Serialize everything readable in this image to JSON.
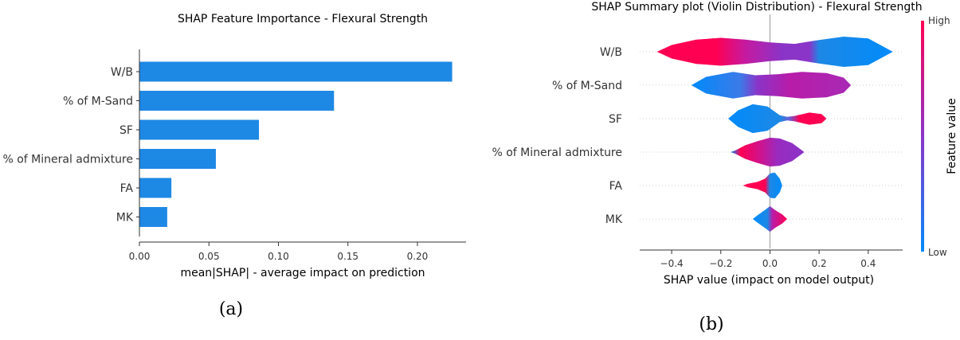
{
  "chart_data": [
    {
      "type": "bar",
      "orientation": "horizontal",
      "title": "SHAP Feature Importance - Flexural Strength",
      "xlabel": "mean|SHAP| - average impact on prediction",
      "ylabel": "",
      "xlim": [
        0,
        0.235
      ],
      "xticks": [
        "0.00",
        "0.05",
        "0.10",
        "0.15",
        "0.20"
      ],
      "categories": [
        "W/B",
        "% of M-Sand",
        "SF",
        "% of Mineral admixture",
        "FA",
        "MK"
      ],
      "values": [
        0.225,
        0.14,
        0.086,
        0.055,
        0.023,
        0.02
      ],
      "bar_color": "#1e88e5",
      "caption": "(a)"
    },
    {
      "type": "violin",
      "title": "SHAP Summary plot (Violin Distribution) - Flexural Strength",
      "xlabel": "SHAP value (impact on model output)",
      "ylabel": "",
      "xlim": [
        -0.53,
        0.54
      ],
      "xticks": [
        "−0.4",
        "−0.2",
        "0.0",
        "0.2",
        "0.4"
      ],
      "categories": [
        "W/B",
        "% of M-Sand",
        "SF",
        "% of Mineral admixture",
        "FA",
        "MK"
      ],
      "violins": [
        {
          "feature": "W/B",
          "min": -0.46,
          "max": 0.5,
          "profile": [
            [
              -0.46,
              0.0
            ],
            [
              -0.4,
              0.45
            ],
            [
              -0.3,
              0.8
            ],
            [
              -0.2,
              0.92
            ],
            [
              -0.1,
              0.8
            ],
            [
              0.0,
              0.62
            ],
            [
              0.1,
              0.52
            ],
            [
              0.2,
              0.78
            ],
            [
              0.3,
              1.0
            ],
            [
              0.4,
              0.88
            ],
            [
              0.5,
              0.0
            ]
          ],
          "color_stops": [
            [
              -0.46,
              "#ff0052"
            ],
            [
              -0.22,
              "#ff0052"
            ],
            [
              -0.1,
              "#c51aa0"
            ],
            [
              0.05,
              "#8a34c8"
            ],
            [
              0.16,
              "#8a34c8"
            ],
            [
              0.2,
              "#1e88e5"
            ],
            [
              0.5,
              "#008bfb"
            ]
          ]
        },
        {
          "feature": "% of M-Sand",
          "min": -0.32,
          "max": 0.33,
          "profile": [
            [
              -0.32,
              0.0
            ],
            [
              -0.26,
              0.55
            ],
            [
              -0.15,
              0.88
            ],
            [
              -0.06,
              0.66
            ],
            [
              0.03,
              0.72
            ],
            [
              0.13,
              0.88
            ],
            [
              0.23,
              0.8
            ],
            [
              0.3,
              0.5
            ],
            [
              0.33,
              0.0
            ]
          ],
          "color_stops": [
            [
              -0.32,
              "#008bfb"
            ],
            [
              -0.12,
              "#3d7ae8"
            ],
            [
              -0.05,
              "#8a34c8"
            ],
            [
              0.08,
              "#b81ca8"
            ],
            [
              0.33,
              "#a82ab5"
            ]
          ]
        },
        {
          "feature": "SF",
          "min": -0.17,
          "max": 0.23,
          "profile": [
            [
              -0.17,
              0.0
            ],
            [
              -0.13,
              0.55
            ],
            [
              -0.07,
              0.95
            ],
            [
              -0.01,
              0.8
            ],
            [
              0.04,
              0.22
            ],
            [
              0.07,
              0.12
            ],
            [
              0.1,
              0.18
            ],
            [
              0.16,
              0.4
            ],
            [
              0.21,
              0.3
            ],
            [
              0.23,
              0.0
            ]
          ],
          "color_stops": [
            [
              -0.17,
              "#008bfb"
            ],
            [
              0.04,
              "#1e88e5"
            ],
            [
              0.08,
              "#6a5fd6"
            ],
            [
              0.12,
              "#ff0052"
            ],
            [
              0.23,
              "#ff0052"
            ]
          ]
        },
        {
          "feature": "% of Mineral admixture",
          "min": -0.16,
          "max": 0.14,
          "profile": [
            [
              -0.16,
              0.0
            ],
            [
              -0.14,
              0.12
            ],
            [
              -0.1,
              0.45
            ],
            [
              -0.05,
              0.72
            ],
            [
              0.0,
              0.95
            ],
            [
              0.04,
              0.9
            ],
            [
              0.09,
              0.6
            ],
            [
              0.14,
              0.0
            ]
          ],
          "color_stops": [
            [
              -0.16,
              "#008bfb"
            ],
            [
              -0.12,
              "#ff0052"
            ],
            [
              -0.04,
              "#d0128c"
            ],
            [
              0.03,
              "#9a2bbf"
            ],
            [
              0.14,
              "#8a34c8"
            ]
          ]
        },
        {
          "feature": "FA",
          "min": -0.11,
          "max": 0.05,
          "profile": [
            [
              -0.11,
              0.0
            ],
            [
              -0.09,
              0.12
            ],
            [
              -0.05,
              0.24
            ],
            [
              -0.02,
              0.45
            ],
            [
              0.0,
              0.8
            ],
            [
              0.02,
              0.85
            ],
            [
              0.04,
              0.45
            ],
            [
              0.05,
              0.0
            ]
          ],
          "color_stops": [
            [
              -0.11,
              "#ff0052"
            ],
            [
              -0.02,
              "#ff0052"
            ],
            [
              0.0,
              "#1e88e5"
            ],
            [
              0.05,
              "#008bfb"
            ]
          ]
        },
        {
          "feature": "MK",
          "min": -0.07,
          "max": 0.07,
          "profile": [
            [
              -0.07,
              0.0
            ],
            [
              -0.05,
              0.25
            ],
            [
              -0.02,
              0.6
            ],
            [
              0.0,
              0.85
            ],
            [
              0.02,
              0.6
            ],
            [
              0.05,
              0.3
            ],
            [
              0.07,
              0.0
            ]
          ],
          "color_stops": [
            [
              -0.07,
              "#008bfb"
            ],
            [
              -0.01,
              "#1e88e5"
            ],
            [
              0.01,
              "#b81ca8"
            ],
            [
              0.07,
              "#ff0052"
            ]
          ]
        }
      ],
      "colorbar": {
        "label": "Feature value",
        "high": "High",
        "low": "Low",
        "high_color": "#ff0052",
        "low_color": "#008bfb"
      },
      "caption": "(b)"
    }
  ]
}
